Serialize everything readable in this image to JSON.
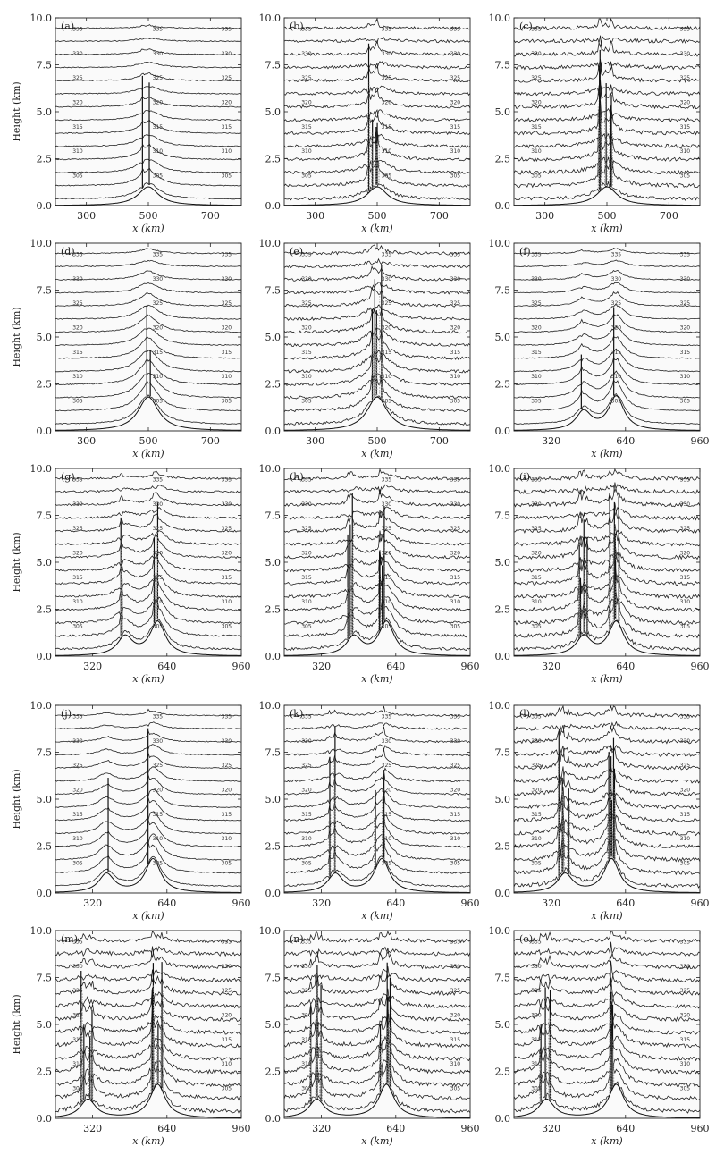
{
  "figure": {
    "ylabel": "Height (km)",
    "xlabel": "x (km)",
    "y_ticks": [
      "0.0",
      "2.5",
      "5.0",
      "7.5",
      "10.0"
    ]
  },
  "chart_data": [
    {
      "panel": "(a)",
      "type": "line",
      "xlim": [
        200,
        800
      ],
      "ylim": [
        0,
        10
      ],
      "x_ticks": [
        300,
        500,
        700
      ],
      "terrain": [
        {
          "x": 500,
          "h": 1.0,
          "w": 40
        }
      ],
      "isentrope_labels": [
        305,
        310,
        315,
        320,
        325,
        330,
        335
      ],
      "activity": 1
    },
    {
      "panel": "(b)",
      "type": "line",
      "xlim": [
        200,
        800
      ],
      "ylim": [
        0,
        10
      ],
      "x_ticks": [
        300,
        500,
        700
      ],
      "terrain": [
        {
          "x": 500,
          "h": 1.0,
          "w": 40
        }
      ],
      "isentrope_labels": [
        305,
        310,
        315,
        320,
        325,
        330,
        335
      ],
      "activity": 3
    },
    {
      "panel": "(c)",
      "type": "line",
      "xlim": [
        200,
        800
      ],
      "ylim": [
        0,
        10
      ],
      "x_ticks": [
        300,
        500,
        700
      ],
      "terrain": [
        {
          "x": 500,
          "h": 1.0,
          "w": 40
        }
      ],
      "isentrope_labels": [
        305,
        310,
        315,
        320,
        325,
        330,
        335
      ],
      "activity": 4
    },
    {
      "panel": "(d)",
      "type": "line",
      "xlim": [
        200,
        800
      ],
      "ylim": [
        0,
        10
      ],
      "x_ticks": [
        300,
        500,
        700
      ],
      "terrain": [
        {
          "x": 500,
          "h": 1.8,
          "w": 40
        }
      ],
      "isentrope_labels": [
        305,
        310,
        315,
        320,
        325,
        330,
        335
      ],
      "activity": 1
    },
    {
      "panel": "(e)",
      "type": "line",
      "xlim": [
        200,
        800
      ],
      "ylim": [
        0,
        10
      ],
      "x_ticks": [
        300,
        500,
        700
      ],
      "terrain": [
        {
          "x": 500,
          "h": 1.8,
          "w": 40
        }
      ],
      "isentrope_labels": [
        305,
        310,
        315,
        320,
        325,
        330,
        335
      ],
      "activity": 3
    },
    {
      "panel": "(f)",
      "type": "line",
      "xlim": [
        160,
        960
      ],
      "ylim": [
        0,
        10
      ],
      "x_ticks": [
        320,
        640,
        960
      ],
      "terrain": [
        {
          "x": 460,
          "h": 1.0,
          "w": 40
        },
        {
          "x": 600,
          "h": 1.8,
          "w": 40
        }
      ],
      "isentrope_labels": [
        305,
        310,
        315,
        320,
        325,
        330,
        335
      ],
      "activity": 1
    },
    {
      "panel": "(g)",
      "type": "line",
      "xlim": [
        160,
        960
      ],
      "ylim": [
        0,
        10
      ],
      "x_ticks": [
        320,
        640,
        960
      ],
      "terrain": [
        {
          "x": 460,
          "h": 1.0,
          "w": 40
        },
        {
          "x": 600,
          "h": 1.8,
          "w": 40
        }
      ],
      "isentrope_labels": [
        305,
        310,
        315,
        320,
        325,
        330,
        335
      ],
      "activity": 2
    },
    {
      "panel": "(h)",
      "type": "line",
      "xlim": [
        160,
        960
      ],
      "ylim": [
        0,
        10
      ],
      "x_ticks": [
        320,
        640,
        960
      ],
      "terrain": [
        {
          "x": 460,
          "h": 1.0,
          "w": 40
        },
        {
          "x": 600,
          "h": 1.8,
          "w": 40
        }
      ],
      "isentrope_labels": [
        305,
        310,
        315,
        320,
        325,
        330,
        335
      ],
      "activity": 3
    },
    {
      "panel": "(i)",
      "type": "line",
      "xlim": [
        160,
        960
      ],
      "ylim": [
        0,
        10
      ],
      "x_ticks": [
        320,
        640,
        960
      ],
      "terrain": [
        {
          "x": 460,
          "h": 1.0,
          "w": 40
        },
        {
          "x": 600,
          "h": 1.8,
          "w": 40
        }
      ],
      "isentrope_labels": [
        305,
        310,
        315,
        320,
        325,
        330,
        335
      ],
      "activity": 4
    },
    {
      "panel": "(j)",
      "type": "line",
      "xlim": [
        160,
        960
      ],
      "ylim": [
        0,
        10
      ],
      "x_ticks": [
        320,
        640,
        960
      ],
      "terrain": [
        {
          "x": 380,
          "h": 1.0,
          "w": 40
        },
        {
          "x": 580,
          "h": 1.8,
          "w": 40
        }
      ],
      "isentrope_labels": [
        305,
        310,
        315,
        320,
        325,
        330,
        335
      ],
      "activity": 1
    },
    {
      "panel": "(k)",
      "type": "line",
      "xlim": [
        160,
        960
      ],
      "ylim": [
        0,
        10
      ],
      "x_ticks": [
        320,
        640,
        960
      ],
      "terrain": [
        {
          "x": 380,
          "h": 1.0,
          "w": 40
        },
        {
          "x": 580,
          "h": 1.8,
          "w": 40
        }
      ],
      "isentrope_labels": [
        305,
        310,
        315,
        320,
        325,
        330,
        335
      ],
      "activity": 2
    },
    {
      "panel": "(l)",
      "type": "line",
      "xlim": [
        160,
        960
      ],
      "ylim": [
        0,
        10
      ],
      "x_ticks": [
        320,
        640,
        960
      ],
      "terrain": [
        {
          "x": 380,
          "h": 1.0,
          "w": 40
        },
        {
          "x": 580,
          "h": 1.8,
          "w": 40
        }
      ],
      "isentrope_labels": [
        305,
        310,
        315,
        320,
        325,
        330,
        335
      ],
      "activity": 4
    },
    {
      "panel": "(m)",
      "type": "line",
      "xlim": [
        160,
        960
      ],
      "ylim": [
        0,
        10
      ],
      "x_ticks": [
        320,
        640,
        960
      ],
      "terrain": [
        {
          "x": 300,
          "h": 1.0,
          "w": 40
        },
        {
          "x": 600,
          "h": 1.8,
          "w": 40
        }
      ],
      "isentrope_labels": [
        305,
        310,
        315,
        320,
        325,
        330,
        335
      ],
      "activity": 4
    },
    {
      "panel": "(n)",
      "type": "line",
      "xlim": [
        160,
        960
      ],
      "ylim": [
        0,
        10
      ],
      "x_ticks": [
        320,
        640,
        960
      ],
      "terrain": [
        {
          "x": 300,
          "h": 1.0,
          "w": 40
        },
        {
          "x": 600,
          "h": 1.8,
          "w": 40
        }
      ],
      "isentrope_labels": [
        305,
        310,
        315,
        320,
        325,
        330,
        335
      ],
      "activity": 4
    },
    {
      "panel": "(o)",
      "type": "line",
      "xlim": [
        160,
        960
      ],
      "ylim": [
        0,
        10
      ],
      "x_ticks": [
        320,
        640,
        960
      ],
      "terrain": [
        {
          "x": 300,
          "h": 1.0,
          "w": 40
        },
        {
          "x": 600,
          "h": 1.8,
          "w": 40
        }
      ],
      "isentrope_labels": [
        305,
        310,
        315,
        320,
        325,
        330,
        335
      ],
      "activity": 4
    }
  ]
}
